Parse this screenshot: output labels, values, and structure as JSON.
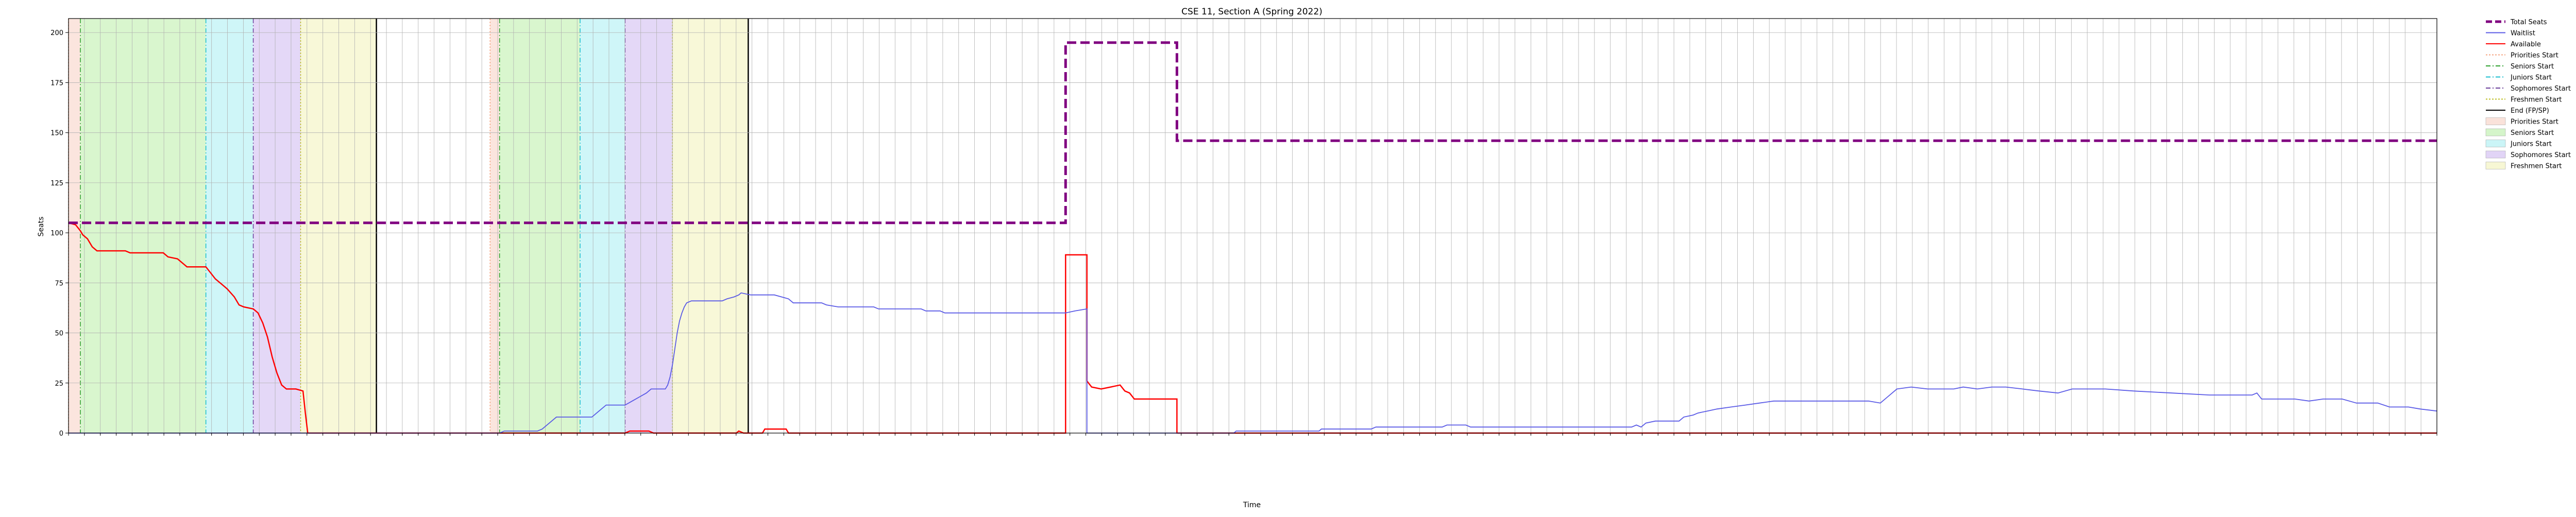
{
  "chart_data": {
    "type": "line",
    "title": "CSE 11, Section A (Spring 2022)",
    "xlabel": "Time",
    "ylabel": "Seats",
    "ylim": [
      0,
      207
    ],
    "yticks": [
      0,
      25,
      50,
      75,
      100,
      125,
      150,
      175,
      200
    ],
    "xrange": [
      0,
      1000
    ],
    "grid": true,
    "legend_position": "upper-right-outside",
    "legend": [
      {
        "label": "Total Seats",
        "kind": "line",
        "color": "#800080",
        "style": "dashed-thick"
      },
      {
        "label": "Waitlist",
        "kind": "line",
        "color": "#5a5ae6",
        "style": "solid"
      },
      {
        "label": "Available",
        "kind": "line",
        "color": "#ff0000",
        "style": "solid"
      },
      {
        "label": "Priorities Start",
        "kind": "line",
        "color": "#f4a582",
        "style": "dotted"
      },
      {
        "label": "Seniors Start",
        "kind": "line",
        "color": "#2ca02c",
        "style": "dashdot"
      },
      {
        "label": "Juniors Start",
        "kind": "line",
        "color": "#17becf",
        "style": "dashdot"
      },
      {
        "label": "Sophomores Start",
        "kind": "line",
        "color": "#6a3d9a",
        "style": "dashdot"
      },
      {
        "label": "Freshmen Start",
        "kind": "line",
        "color": "#bcbd22",
        "style": "dotted"
      },
      {
        "label": "End (FP/SP)",
        "kind": "line",
        "color": "#000000",
        "style": "solid"
      },
      {
        "label": "Priorities Start",
        "kind": "patch",
        "color": "#f7cfc2"
      },
      {
        "label": "Seniors Start",
        "kind": "patch",
        "color": "#b9efa6"
      },
      {
        "label": "Juniors Start",
        "kind": "patch",
        "color": "#a8eef2"
      },
      {
        "label": "Sophomores Start",
        "kind": "patch",
        "color": "#cdb8f0"
      },
      {
        "label": "Freshmen Start",
        "kind": "patch",
        "color": "#f2f2b8"
      }
    ],
    "phases": [
      {
        "kind": "priority",
        "start": 0.0,
        "end": 5.0
      },
      {
        "kind": "senior",
        "start": 5.0,
        "end": 58.0
      },
      {
        "kind": "junior",
        "start": 58.0,
        "end": 78.0
      },
      {
        "kind": "sophomore",
        "start": 78.0,
        "end": 98.0
      },
      {
        "kind": "freshman",
        "start": 98.0,
        "end": 130.0
      },
      {
        "kind": "end",
        "start": 130.0,
        "end": 130.0
      },
      {
        "kind": "priority",
        "start": 178.0,
        "end": 182.0
      },
      {
        "kind": "senior",
        "start": 182.0,
        "end": 216.0
      },
      {
        "kind": "junior",
        "start": 216.0,
        "end": 235.0
      },
      {
        "kind": "sophomore",
        "start": 235.0,
        "end": 255.0
      },
      {
        "kind": "freshman",
        "start": 255.0,
        "end": 287.0
      },
      {
        "kind": "end",
        "start": 287.0,
        "end": 287.0
      }
    ],
    "series": [
      {
        "name": "Total Seats",
        "points": [
          [
            0,
            105
          ],
          [
            421,
            105
          ],
          [
            421,
            195
          ],
          [
            468,
            195
          ],
          [
            468,
            146
          ],
          [
            1000,
            146
          ]
        ]
      },
      {
        "name": "Available",
        "points": [
          [
            0,
            105
          ],
          [
            3,
            104
          ],
          [
            5,
            101
          ],
          [
            6,
            99
          ],
          [
            8,
            97
          ],
          [
            10,
            93
          ],
          [
            12,
            91
          ],
          [
            14,
            91
          ],
          [
            24,
            91
          ],
          [
            26,
            90
          ],
          [
            40,
            90
          ],
          [
            42,
            88
          ],
          [
            46,
            87
          ],
          [
            48,
            85
          ],
          [
            50,
            83
          ],
          [
            58,
            83
          ],
          [
            60,
            80
          ],
          [
            62,
            77
          ],
          [
            65,
            74
          ],
          [
            67,
            72
          ],
          [
            70,
            68
          ],
          [
            72,
            64
          ],
          [
            74,
            63
          ],
          [
            78,
            62
          ],
          [
            80,
            60
          ],
          [
            82,
            55
          ],
          [
            84,
            48
          ],
          [
            86,
            38
          ],
          [
            88,
            30
          ],
          [
            90,
            24
          ],
          [
            92,
            22
          ],
          [
            96,
            22
          ],
          [
            99,
            21
          ],
          [
            100,
            10
          ],
          [
            101,
            0
          ],
          [
            180,
            0
          ],
          [
            235,
            0
          ],
          [
            237,
            1
          ],
          [
            245,
            1
          ],
          [
            247,
            0
          ],
          [
            282,
            0
          ],
          [
            283,
            1
          ],
          [
            285,
            0
          ],
          [
            293,
            0
          ],
          [
            294,
            2
          ],
          [
            303,
            2
          ],
          [
            304,
            0
          ],
          [
            421,
            0
          ],
          [
            421,
            89
          ],
          [
            430,
            89
          ],
          [
            430,
            26
          ],
          [
            432,
            23
          ],
          [
            436,
            22
          ],
          [
            440,
            23
          ],
          [
            444,
            24
          ],
          [
            446,
            21
          ],
          [
            448,
            20
          ],
          [
            450,
            17
          ],
          [
            458,
            17
          ],
          [
            462,
            17
          ],
          [
            464,
            17
          ],
          [
            468,
            17
          ],
          [
            468,
            0
          ],
          [
            1000,
            0
          ]
        ]
      },
      {
        "name": "Waitlist",
        "points": [
          [
            0,
            0
          ],
          [
            182,
            0
          ],
          [
            184,
            1
          ],
          [
            198,
            1
          ],
          [
            200,
            2
          ],
          [
            202,
            4
          ],
          [
            204,
            6
          ],
          [
            206,
            8
          ],
          [
            208,
            8
          ],
          [
            221,
            8
          ],
          [
            223,
            10
          ],
          [
            225,
            12
          ],
          [
            227,
            14
          ],
          [
            235,
            14
          ],
          [
            238,
            16
          ],
          [
            241,
            18
          ],
          [
            244,
            20
          ],
          [
            246,
            22
          ],
          [
            252,
            22
          ],
          [
            253,
            24
          ],
          [
            254,
            28
          ],
          [
            255,
            34
          ],
          [
            256,
            42
          ],
          [
            257,
            50
          ],
          [
            258,
            56
          ],
          [
            259,
            60
          ],
          [
            260,
            63
          ],
          [
            261,
            65
          ],
          [
            263,
            66
          ],
          [
            276,
            66
          ],
          [
            278,
            67
          ],
          [
            281,
            68
          ],
          [
            283,
            69
          ],
          [
            284,
            70
          ],
          [
            288,
            69
          ],
          [
            298,
            69
          ],
          [
            304,
            67
          ],
          [
            306,
            65
          ],
          [
            318,
            65
          ],
          [
            320,
            64
          ],
          [
            325,
            63
          ],
          [
            340,
            63
          ],
          [
            342,
            62
          ],
          [
            360,
            62
          ],
          [
            362,
            61
          ],
          [
            368,
            61
          ],
          [
            370,
            60
          ],
          [
            410,
            60
          ],
          [
            421,
            60
          ],
          [
            425,
            61
          ],
          [
            430,
            62
          ],
          [
            430,
            0
          ],
          [
            492,
            0
          ],
          [
            493,
            1
          ],
          [
            528,
            1
          ],
          [
            529,
            2
          ],
          [
            550,
            2
          ],
          [
            552,
            3
          ],
          [
            580,
            3
          ],
          [
            582,
            4
          ],
          [
            590,
            4
          ],
          [
            592,
            3
          ],
          [
            660,
            3
          ],
          [
            662,
            4
          ],
          [
            664,
            3
          ],
          [
            666,
            5
          ],
          [
            670,
            6
          ],
          [
            680,
            6
          ],
          [
            682,
            8
          ],
          [
            686,
            9
          ],
          [
            688,
            10
          ],
          [
            692,
            11
          ],
          [
            696,
            12
          ],
          [
            702,
            13
          ],
          [
            708,
            14
          ],
          [
            714,
            15
          ],
          [
            720,
            16
          ],
          [
            752,
            16
          ],
          [
            760,
            16
          ],
          [
            765,
            15
          ],
          [
            768,
            18
          ],
          [
            772,
            22
          ],
          [
            778,
            23
          ],
          [
            785,
            22
          ],
          [
            796,
            22
          ],
          [
            800,
            23
          ],
          [
            806,
            22
          ],
          [
            812,
            23
          ],
          [
            818,
            23
          ],
          [
            825,
            22
          ],
          [
            832,
            21
          ],
          [
            840,
            20
          ],
          [
            846,
            22
          ],
          [
            860,
            22
          ],
          [
            872,
            21
          ],
          [
            888,
            20
          ],
          [
            904,
            19
          ],
          [
            918,
            19
          ],
          [
            922,
            19
          ],
          [
            924,
            20
          ],
          [
            926,
            17
          ],
          [
            932,
            17
          ],
          [
            940,
            17
          ],
          [
            946,
            16
          ],
          [
            952,
            17
          ],
          [
            960,
            17
          ],
          [
            966,
            15
          ],
          [
            975,
            15
          ],
          [
            980,
            13
          ],
          [
            988,
            13
          ],
          [
            993,
            12
          ],
          [
            1000,
            11
          ]
        ]
      }
    ],
    "xtick_count": 150
  }
}
